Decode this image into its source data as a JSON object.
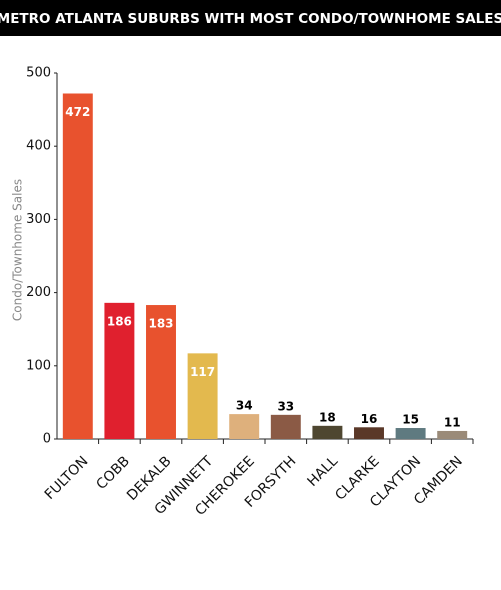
{
  "chart_data": {
    "type": "bar",
    "title": "METRO ATLANTA SUBURBS WITH MOST CONDO/TOWNHOME SALES",
    "y_label": "Condo/Townhome Sales",
    "categories": [
      "FULTON",
      "COBB",
      "DEKALB",
      "GWINNETT",
      "CHEROKEE",
      "FORSYTH",
      "HALL",
      "CLARKE",
      "CLAYTON",
      "CAMDEN"
    ],
    "values": [
      472,
      186,
      183,
      117,
      34,
      33,
      18,
      16,
      15,
      11
    ],
    "colors": [
      "#e8522e",
      "#e0202e",
      "#e8522e",
      "#e3b94e",
      "#deb07c",
      "#8b5a45",
      "#4e4630",
      "#5a3828",
      "#5f7a80",
      "#9a8a78"
    ],
    "ylim": [
      0,
      500
    ],
    "yticks": [
      0,
      100,
      200,
      300,
      400,
      500
    ],
    "grid": false
  }
}
